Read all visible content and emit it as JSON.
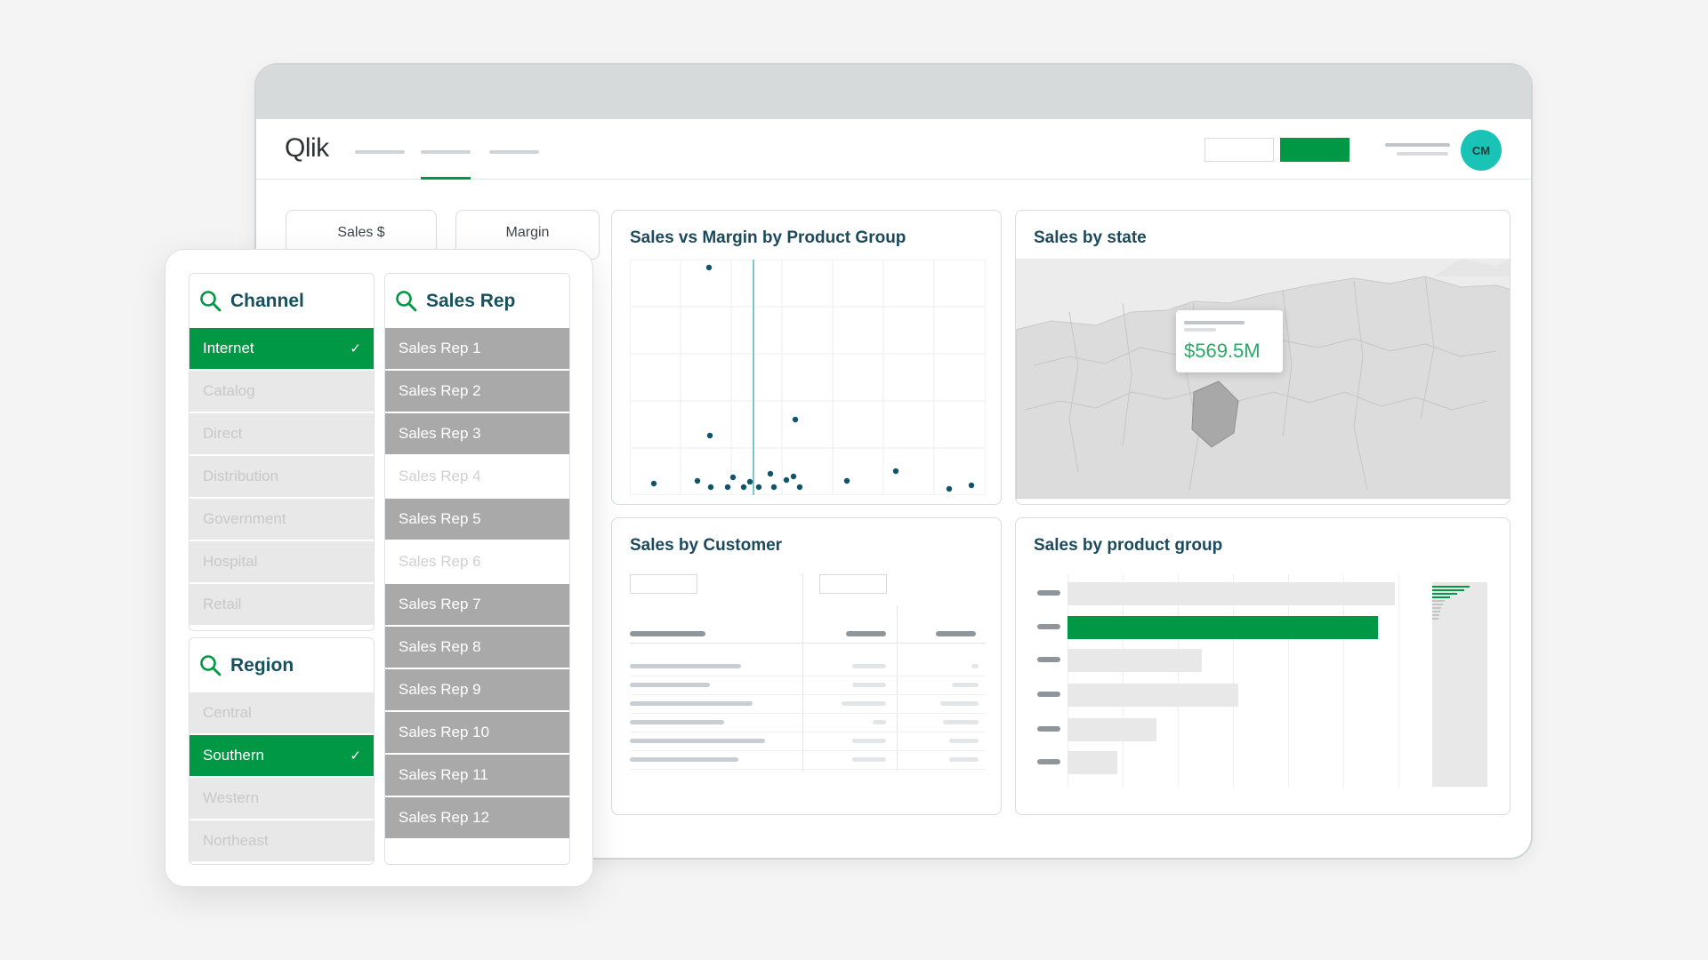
{
  "app": {
    "logo": "Qlik",
    "avatar": "CM"
  },
  "kpis": [
    {
      "label": "Sales $"
    },
    {
      "label": "Margin"
    }
  ],
  "charts": {
    "scatter_title": "Sales vs Margin by Product Group",
    "map_title": "Sales by state",
    "map_tooltip_value": "$569.5M",
    "customer_title": "Sales by Customer",
    "product_title": "Sales by product group"
  },
  "filters": {
    "channel": {
      "title": "Channel",
      "items": [
        {
          "label": "Internet",
          "state": "selected"
        },
        {
          "label": "Catalog",
          "state": "excluded"
        },
        {
          "label": "Direct",
          "state": "excluded"
        },
        {
          "label": "Distribution",
          "state": "excluded"
        },
        {
          "label": "Government",
          "state": "excluded"
        },
        {
          "label": "Hospital",
          "state": "excluded"
        },
        {
          "label": "Retail",
          "state": "excluded"
        }
      ]
    },
    "region": {
      "title": "Region",
      "items": [
        {
          "label": "Central",
          "state": "excluded"
        },
        {
          "label": "Southern",
          "state": "selected"
        },
        {
          "label": "Western",
          "state": "excluded"
        },
        {
          "label": "Northeast",
          "state": "excluded"
        }
      ]
    },
    "sales_rep": {
      "title": "Sales Rep",
      "items": [
        {
          "label": "Sales Rep 1",
          "state": "possible"
        },
        {
          "label": "Sales Rep 2",
          "state": "possible"
        },
        {
          "label": "Sales Rep 3",
          "state": "possible"
        },
        {
          "label": "Sales Rep 4",
          "state": "alt"
        },
        {
          "label": "Sales Rep 5",
          "state": "possible"
        },
        {
          "label": "Sales Rep 6",
          "state": "alt"
        },
        {
          "label": "Sales Rep 7",
          "state": "possible"
        },
        {
          "label": "Sales Rep 8",
          "state": "possible"
        },
        {
          "label": "Sales Rep 9",
          "state": "possible"
        },
        {
          "label": "Sales Rep 10",
          "state": "possible"
        },
        {
          "label": "Sales Rep 11",
          "state": "possible"
        },
        {
          "label": "Sales Rep 12",
          "state": "possible"
        }
      ]
    }
  },
  "colors": {
    "accent": "#009845",
    "avatar": "#19c4b6",
    "title": "#1c4a5c",
    "dot": "#10546a"
  }
}
